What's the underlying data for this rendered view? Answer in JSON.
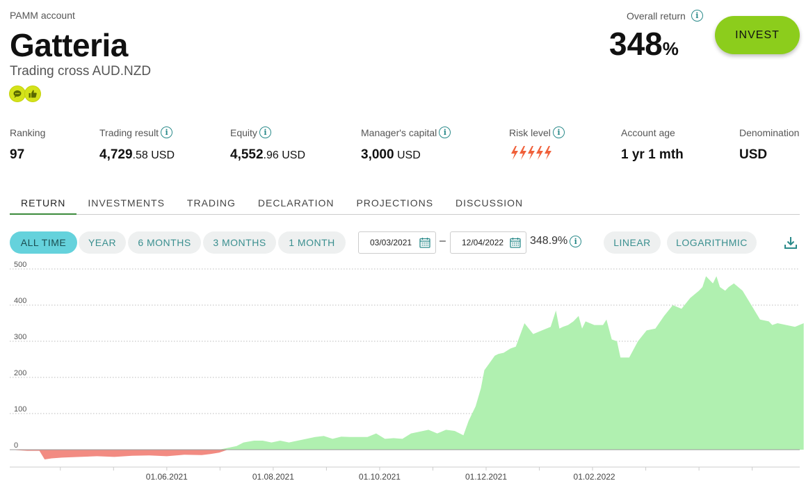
{
  "header": {
    "account_type": "PAMM account",
    "name": "Gatteria",
    "subtitle": "Trading cross AUD.NZD",
    "badges": [
      "chat-icon",
      "thumbs-up-icon"
    ]
  },
  "overall_return": {
    "label": "Overall return",
    "value": "348",
    "unit": "%"
  },
  "invest_button": "INVEST",
  "stats": {
    "ranking": {
      "label": "Ranking",
      "value": "97"
    },
    "trading_result": {
      "label": "Trading result",
      "int": "4,729",
      "dec": ".58",
      "unit": " USD"
    },
    "equity": {
      "label": "Equity",
      "int": "4,552",
      "dec": ".96",
      "unit": " USD"
    },
    "managers_capital": {
      "label": "Manager's capital",
      "int": "3,000",
      "unit": " USD"
    },
    "risk_level": {
      "label": "Risk level",
      "level": 5,
      "max": 5
    },
    "account_age": {
      "label": "Account age",
      "value": "1 yr 1 mth"
    },
    "denomination": {
      "label": "Denomination",
      "value": "USD"
    }
  },
  "tabs": [
    "RETURN",
    "INVESTMENTS",
    "TRADING",
    "DECLARATION",
    "PROJECTIONS",
    "DISCUSSION"
  ],
  "period_buttons": [
    "ALL TIME",
    "YEAR",
    "6 MONTHS",
    "3 MONTHS",
    "1 MONTH"
  ],
  "date_range": {
    "from": "03/03/2021",
    "to": "12/04/2022",
    "dash": "–",
    "return": "348.9%"
  },
  "scale_buttons": [
    "LINEAR",
    "LOGARITHMIC"
  ],
  "colors": {
    "accent": "#8ccd1c",
    "active_pill": "#65d2dc",
    "positive_area": "#b0f0b0",
    "negative_area": "#f28b82",
    "risk": "#f0603a"
  },
  "chart_data": {
    "type": "area",
    "title": "",
    "xlabel": "",
    "ylabel": "",
    "ylim": [
      -40,
      520
    ],
    "y_ticks": [
      0,
      100,
      200,
      300,
      400,
      500
    ],
    "x_tick_labels": [
      "01.06.2021",
      "01.08.2021",
      "01.10.2021",
      "01.12.2021",
      "01.02.2022"
    ],
    "x_tick_days": [
      90,
      151,
      212,
      273,
      335
    ],
    "grid": true,
    "x_days": [
      0,
      10,
      17,
      20,
      24,
      30,
      40,
      50,
      60,
      70,
      80,
      90,
      100,
      110,
      115,
      120,
      125,
      130,
      134,
      140,
      145,
      150,
      155,
      160,
      165,
      170,
      175,
      180,
      185,
      190,
      195,
      200,
      205,
      210,
      215,
      220,
      225,
      230,
      235,
      240,
      245,
      250,
      255,
      260,
      263,
      267,
      270,
      272,
      275,
      278,
      280,
      283,
      287,
      290,
      295,
      300,
      305,
      310,
      313,
      315,
      317,
      320,
      323,
      326,
      328,
      330,
      335,
      340,
      342,
      345,
      348,
      350,
      352,
      355,
      360,
      365,
      370,
      375,
      380,
      385,
      390,
      395,
      397,
      399,
      401,
      403,
      405,
      407,
      410,
      412,
      415,
      420,
      425,
      430,
      435,
      437,
      440,
      445,
      450,
      455
    ],
    "values": [
      0,
      -3,
      -3,
      -27,
      -24,
      -22,
      -20,
      -18,
      -20,
      -17,
      -16,
      -18,
      -14,
      -15,
      -12,
      -8,
      5,
      10,
      20,
      25,
      25,
      20,
      25,
      20,
      25,
      30,
      35,
      38,
      30,
      36,
      35,
      35,
      35,
      45,
      30,
      32,
      30,
      45,
      50,
      55,
      45,
      55,
      52,
      40,
      80,
      120,
      170,
      220,
      240,
      260,
      265,
      268,
      280,
      285,
      350,
      320,
      330,
      340,
      385,
      335,
      340,
      345,
      355,
      370,
      335,
      355,
      345,
      345,
      360,
      305,
      300,
      255,
      255,
      255,
      300,
      330,
      335,
      370,
      400,
      390,
      420,
      440,
      450,
      480,
      470,
      460,
      480,
      450,
      440,
      450,
      460,
      440,
      400,
      360,
      355,
      345,
      350,
      345,
      340,
      350
    ]
  }
}
